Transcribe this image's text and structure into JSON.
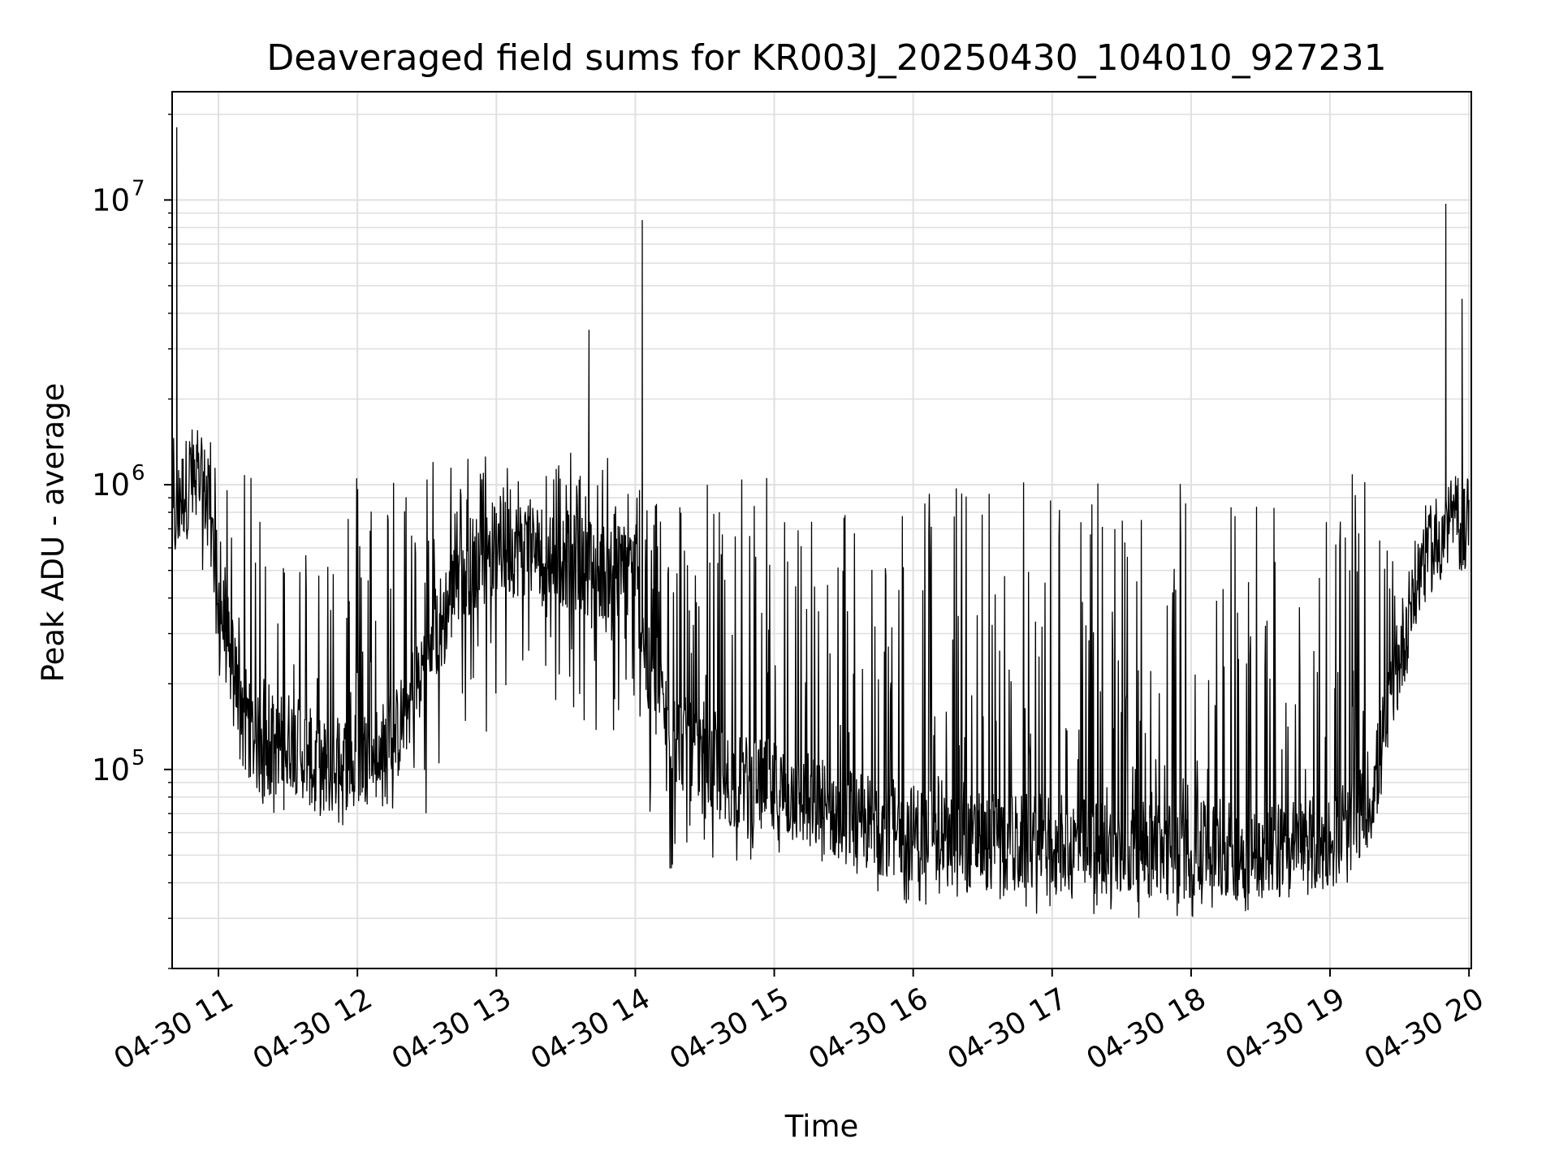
{
  "chart_data": {
    "type": "line",
    "title": "Deaveraged field sums for KR003J_20250430_104010_927231",
    "xlabel": "Time",
    "ylabel": "Peak ADU - average",
    "yscale": "log",
    "grid": true,
    "line_color": "#000000",
    "grid_color": "#e0e0e0",
    "xlim": [
      "2025-04-30 10:40",
      "2025-04-30 20:01"
    ],
    "ylim": [
      20000,
      24000000
    ],
    "x_ticks": [
      {
        "value": "2025-04-30 11:00",
        "label": "04-30 11"
      },
      {
        "value": "2025-04-30 12:00",
        "label": "04-30 12"
      },
      {
        "value": "2025-04-30 13:00",
        "label": "04-30 13"
      },
      {
        "value": "2025-04-30 14:00",
        "label": "04-30 14"
      },
      {
        "value": "2025-04-30 15:00",
        "label": "04-30 15"
      },
      {
        "value": "2025-04-30 16:00",
        "label": "04-30 16"
      },
      {
        "value": "2025-04-30 17:00",
        "label": "04-30 17"
      },
      {
        "value": "2025-04-30 18:00",
        "label": "04-30 18"
      },
      {
        "value": "2025-04-30 19:00",
        "label": "04-30 19"
      },
      {
        "value": "2025-04-30 20:00",
        "label": "04-30 20"
      }
    ],
    "y_ticks": [
      {
        "value": 100000,
        "base": "10",
        "exp": "5"
      },
      {
        "value": 1000000,
        "base": "10",
        "exp": "6"
      },
      {
        "value": 10000000,
        "base": "10",
        "exp": "7"
      }
    ],
    "x": [
      "2025-04-30 10:40",
      "2025-04-30 10:44",
      "2025-04-30 10:48",
      "2025-04-30 10:52",
      "2025-04-30 10:56",
      "2025-04-30 11:00",
      "2025-04-30 11:05",
      "2025-04-30 11:10",
      "2025-04-30 11:15",
      "2025-04-30 11:20",
      "2025-04-30 11:30",
      "2025-04-30 11:45",
      "2025-04-30 12:00",
      "2025-04-30 12:15",
      "2025-04-30 12:30",
      "2025-04-30 12:45",
      "2025-04-30 13:00",
      "2025-04-30 13:15",
      "2025-04-30 13:30",
      "2025-04-30 13:45",
      "2025-04-30 14:00",
      "2025-04-30 14:05",
      "2025-04-30 14:15",
      "2025-04-30 14:30",
      "2025-04-30 14:45",
      "2025-04-30 15:00",
      "2025-04-30 15:20",
      "2025-04-30 15:40",
      "2025-04-30 16:00",
      "2025-04-30 16:30",
      "2025-04-30 17:00",
      "2025-04-30 17:30",
      "2025-04-30 18:00",
      "2025-04-30 18:30",
      "2025-04-30 19:00",
      "2025-04-30 19:10",
      "2025-04-30 19:20",
      "2025-04-30 19:30",
      "2025-04-30 19:40",
      "2025-04-30 19:50",
      "2025-04-30 20:00"
    ],
    "y": [
      700000,
      900000,
      1100000,
      1000000,
      900000,
      400000,
      250000,
      180000,
      130000,
      110000,
      130000,
      100000,
      110000,
      120000,
      250000,
      500000,
      600000,
      600000,
      550000,
      500000,
      500000,
      220000,
      140000,
      100000,
      90000,
      85000,
      75000,
      65000,
      60000,
      55000,
      55000,
      52000,
      52000,
      52000,
      55000,
      60000,
      95000,
      250000,
      550000,
      700000,
      750000
    ],
    "spike_x": [
      "2025-04-30 10:42",
      "2025-04-30 13:40",
      "2025-04-30 14:03",
      "2025-04-30 19:50",
      "2025-04-30 19:57"
    ],
    "spike_y": [
      18000000,
      3500000,
      8500000,
      9700000,
      4500000
    ],
    "noise_upper_y": [
      1600000,
      1600000,
      1600000,
      1600000,
      1600000,
      1100000,
      1100000,
      1100000,
      1100000,
      1000000,
      600000,
      1100000,
      1300000,
      1350000,
      1350000,
      1350000,
      1300000,
      1300000,
      1300000,
      1300000,
      1100000,
      1100000,
      1100000,
      1100000,
      1100000,
      1100000,
      900000,
      1000000,
      1100000,
      1100000,
      1100000,
      1100000,
      1100000,
      1100000,
      1100000,
      1100000,
      1100000,
      400000,
      750000,
      900000,
      1200000
    ],
    "noise_lower_y": [
      500000,
      600000,
      600000,
      500000,
      500000,
      200000,
      150000,
      100000,
      70000,
      65000,
      70000,
      60000,
      65000,
      70000,
      70000,
      90000,
      150000,
      200000,
      150000,
      110000,
      90000,
      50000,
      40000,
      45000,
      45000,
      45000,
      40000,
      38000,
      30000,
      35000,
      30000,
      30000,
      30000,
      32000,
      40000,
      45000,
      60000,
      180000,
      400000,
      450000,
      500000
    ]
  }
}
